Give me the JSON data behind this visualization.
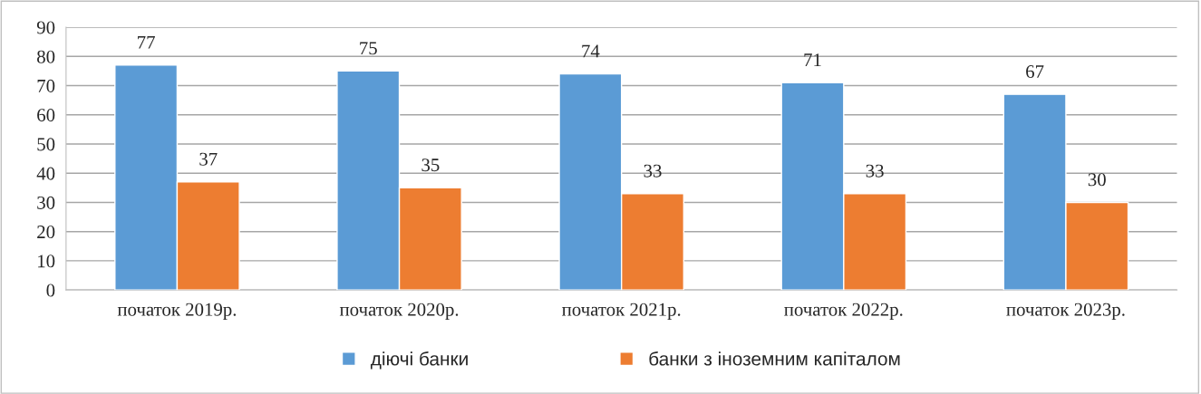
{
  "chart_data": {
    "type": "bar",
    "categories": [
      "початок 2019р.",
      "початок 2020р.",
      "початок 2021р.",
      "початок 2022р.",
      "початок 2023р."
    ],
    "series": [
      {
        "name": "діючі банки",
        "color": "#5b9bd5",
        "values": [
          77,
          75,
          74,
          71,
          67
        ]
      },
      {
        "name": "банки з іноземним капіталом",
        "color": "#ed7d31",
        "values": [
          37,
          35,
          33,
          33,
          30
        ]
      }
    ],
    "ylim": [
      0,
      90
    ],
    "yticks": [
      0,
      10,
      20,
      30,
      40,
      50,
      60,
      70,
      80,
      90
    ],
    "grid": "y",
    "legend": "bottom",
    "data_labels": true
  }
}
